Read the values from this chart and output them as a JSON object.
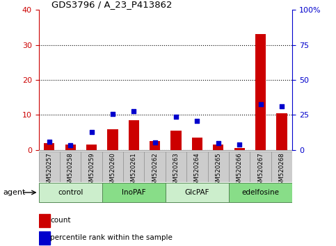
{
  "title": "GDS3796 / A_23_P413862",
  "samples": [
    "GSM520257",
    "GSM520258",
    "GSM520259",
    "GSM520260",
    "GSM520261",
    "GSM520262",
    "GSM520263",
    "GSM520264",
    "GSM520265",
    "GSM520266",
    "GSM520267",
    "GSM520268"
  ],
  "counts": [
    2.0,
    1.5,
    1.5,
    6.0,
    8.5,
    2.5,
    5.5,
    3.5,
    1.5,
    0.5,
    33.0,
    10.5
  ],
  "percentiles": [
    6.0,
    3.5,
    13.0,
    25.5,
    27.5,
    5.5,
    24.0,
    21.0,
    5.0,
    4.0,
    32.5,
    31.0
  ],
  "ylim_left": [
    0,
    40
  ],
  "ylim_right": [
    0,
    100
  ],
  "yticks_left": [
    0,
    10,
    20,
    30,
    40
  ],
  "yticks_right": [
    0,
    25,
    50,
    75,
    100
  ],
  "groups": [
    {
      "label": "control",
      "start": 0,
      "end": 2,
      "color": "#cceecc"
    },
    {
      "label": "InoPAF",
      "start": 3,
      "end": 5,
      "color": "#88dd88"
    },
    {
      "label": "GlcPAF",
      "start": 6,
      "end": 8,
      "color": "#cceecc"
    },
    {
      "label": "edelfosine",
      "start": 9,
      "end": 11,
      "color": "#88dd88"
    }
  ],
  "bar_color": "#cc0000",
  "dot_color": "#0000cc",
  "grid_color": "#000000",
  "title_color": "#000000",
  "left_axis_color": "#cc0000",
  "right_axis_color": "#0000cc",
  "legend_count_label": "count",
  "legend_percentile_label": "percentile rank within the sample",
  "agent_label": "agent",
  "bar_width": 0.5,
  "dot_size": 25,
  "sample_box_color": "#cccccc",
  "sample_box_edge_color": "#999999"
}
